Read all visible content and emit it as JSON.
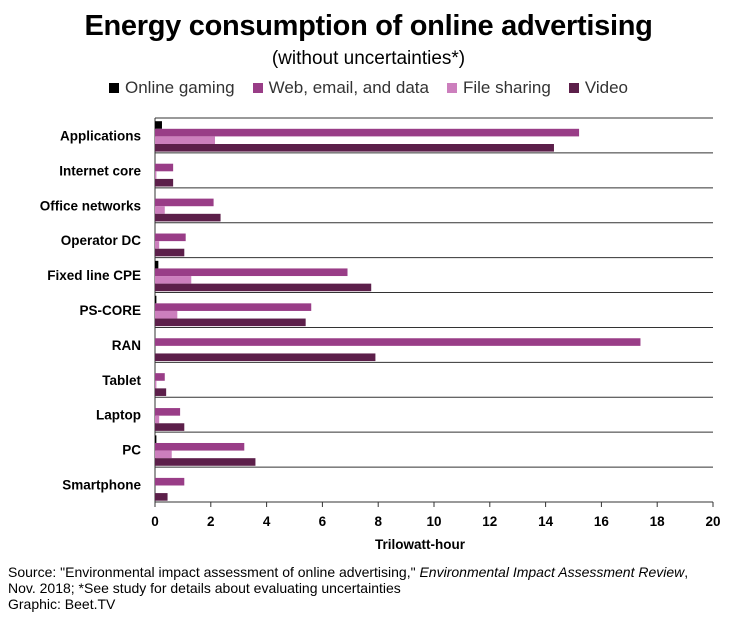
{
  "chart_data": {
    "type": "bar",
    "title": "Energy consumption of online advertising",
    "subtitle": "(without uncertainties*)",
    "xlabel": "Trilowatt-hour",
    "ylabel": "",
    "xlim": [
      0,
      20
    ],
    "xticks": [
      "0",
      "2",
      "4",
      "6",
      "8",
      "10",
      "12",
      "14",
      "16",
      "18",
      "20"
    ],
    "legend_position": "top",
    "categories": [
      "Applications",
      "Internet core",
      "Office networks",
      "Operator DC",
      "Fixed line CPE",
      "PS-CORE",
      "RAN",
      "Tablet",
      "Laptop",
      "PC",
      "Smartphone"
    ],
    "series": [
      {
        "name": "Online gaming",
        "color": "#000000",
        "values": [
          0.25,
          0,
          0,
          0,
          0.12,
          0.05,
          0,
          0,
          0,
          0.05,
          0
        ]
      },
      {
        "name": "Web, email, and data",
        "color": "#993d87",
        "values": [
          15.2,
          0.65,
          2.1,
          1.1,
          6.9,
          5.6,
          17.4,
          0.35,
          0.9,
          3.2,
          1.05
        ]
      },
      {
        "name": "File sharing",
        "color": "#cc7fbd",
        "values": [
          2.15,
          0.05,
          0.35,
          0.15,
          1.3,
          0.8,
          0,
          0.05,
          0.15,
          0.6,
          0
        ]
      },
      {
        "name": "Video",
        "color": "#5c1f4a",
        "values": [
          14.3,
          0.65,
          2.35,
          1.05,
          7.75,
          5.4,
          7.9,
          0.4,
          1.05,
          3.6,
          0.45
        ]
      }
    ]
  },
  "source": {
    "line1_prefix": "Source: \"Environmental impact assessment of online advertising,\" ",
    "line1_italic": "Environmental Impact Assessment Review",
    "line1_suffix": ",",
    "line2": "Nov. 2018; *See study for details about evaluating uncertainties",
    "line3": "Graphic: Beet.TV"
  }
}
